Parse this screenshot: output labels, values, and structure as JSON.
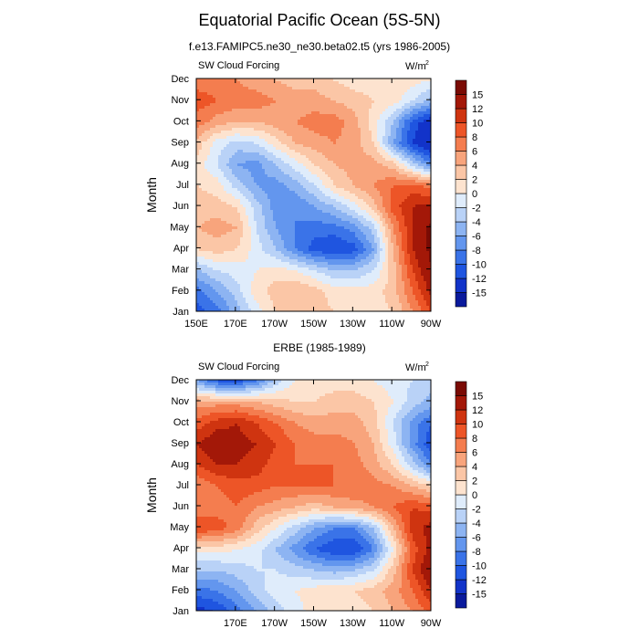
{
  "figure": {
    "title": "Equatorial Pacific Ocean (5S-5N)"
  },
  "chart_data": [
    {
      "type": "heatmap",
      "title": "f.e13.FAMIPC5.ne30_ne30.beta02.t5 (yrs 1986-2005)",
      "left_label": "SW Cloud Forcing",
      "units_label": "W/m",
      "units_sup": "2",
      "ylabel": "Month",
      "xlabel": "",
      "x_ticks": [
        "150E",
        "170E",
        "170W",
        "150W",
        "130W",
        "110W",
        "90W"
      ],
      "y_ticks": [
        "Jan",
        "Feb",
        "Mar",
        "Apr",
        "May",
        "Jun",
        "Jul",
        "Aug",
        "Sep",
        "Oct",
        "Nov",
        "Dec"
      ],
      "colorbar_levels": [
        "-15",
        "-12",
        "-10",
        "-8",
        "-6",
        "-4",
        "-2",
        "0",
        "2",
        "4",
        "6",
        "8",
        "10",
        "12",
        "15"
      ],
      "colorbar_colors": [
        "#0a1a9c",
        "#1233c9",
        "#1f55e0",
        "#3a73e8",
        "#6396ee",
        "#8db4f2",
        "#b9d2f7",
        "#dfecfb",
        "#fde3cf",
        "#fbc6a6",
        "#f8a47c",
        "#f47d4f",
        "#ed5527",
        "#cf3410",
        "#a31808",
        "#7a0b04"
      ],
      "grid": {
        "x_lons": [
          150,
          160,
          170,
          180,
          190,
          200,
          210,
          220,
          230,
          240,
          250,
          260,
          270
        ],
        "months": [
          "Jan",
          "Feb",
          "Mar",
          "Apr",
          "May",
          "Jun",
          "Jul",
          "Aug",
          "Sep",
          "Oct",
          "Nov",
          "Dec"
        ],
        "z": [
          [
            -11,
            -9,
            -5,
            -1,
            2,
            3,
            3,
            2,
            2,
            1,
            2,
            6,
            10
          ],
          [
            -9,
            -6,
            -3,
            1,
            3,
            4,
            3,
            1,
            1,
            1,
            3,
            8,
            13
          ],
          [
            -4,
            -2,
            -1,
            0,
            1,
            0,
            -2,
            -4,
            -4,
            -2,
            3,
            10,
            15
          ],
          [
            2,
            3,
            2,
            -1,
            -4,
            -8,
            -11,
            -12,
            -11,
            -6,
            4,
            12,
            16
          ],
          [
            4,
            5,
            4,
            -2,
            -6,
            -8,
            -9,
            -9,
            -7,
            -3,
            6,
            12,
            16
          ],
          [
            3,
            3,
            2,
            -3,
            -7,
            -8,
            -6,
            -4,
            -1,
            3,
            9,
            12,
            13
          ],
          [
            2,
            1,
            -3,
            -6,
            -7,
            -5,
            -2,
            2,
            4,
            6,
            8,
            9,
            7
          ],
          [
            1,
            -2,
            -6,
            -7,
            -4,
            -1,
            2,
            4,
            5,
            5,
            3,
            -3,
            -8
          ],
          [
            3,
            -1,
            -3,
            -2,
            1,
            4,
            5,
            6,
            5,
            2,
            -6,
            -12,
            -15
          ],
          [
            7,
            5,
            4,
            4,
            5,
            6,
            7,
            7,
            5,
            1,
            -4,
            -11,
            -14
          ],
          [
            9,
            8,
            7,
            7,
            6,
            5,
            5,
            4,
            3,
            2,
            1,
            -2,
            -5
          ],
          [
            7,
            7,
            6,
            5,
            4,
            3,
            3,
            2,
            1,
            1,
            2,
            1,
            0
          ]
        ]
      }
    },
    {
      "type": "heatmap",
      "title": "ERBE (1985-1989)",
      "left_label": "SW Cloud Forcing",
      "units_label": "W/m",
      "units_sup": "2",
      "ylabel": "Month",
      "xlabel": "",
      "x_ticks": [
        "170E",
        "170W",
        "150W",
        "130W",
        "110W",
        "90W"
      ],
      "y_ticks": [
        "Jan",
        "Feb",
        "Mar",
        "Apr",
        "May",
        "Jun",
        "Jul",
        "Aug",
        "Sep",
        "Oct",
        "Nov",
        "Dec"
      ],
      "colorbar_levels": [
        "-15",
        "-12",
        "-10",
        "-8",
        "-6",
        "-4",
        "-2",
        "0",
        "2",
        "4",
        "6",
        "8",
        "10",
        "12",
        "15"
      ],
      "colorbar_colors": [
        "#0a1a9c",
        "#1233c9",
        "#1f55e0",
        "#3a73e8",
        "#6396ee",
        "#8db4f2",
        "#b9d2f7",
        "#dfecfb",
        "#fde3cf",
        "#fbc6a6",
        "#f8a47c",
        "#f47d4f",
        "#ed5527",
        "#cf3410",
        "#a31808",
        "#7a0b04"
      ],
      "grid": {
        "x_lons": [
          150,
          160,
          170,
          180,
          190,
          200,
          210,
          220,
          230,
          240,
          250,
          260,
          270
        ],
        "months": [
          "Jan",
          "Feb",
          "Mar",
          "Apr",
          "May",
          "Jun",
          "Jul",
          "Aug",
          "Sep",
          "Oct",
          "Nov",
          "Dec"
        ],
        "z": [
          [
            -13,
            -12,
            -9,
            -6,
            -3,
            -1,
            1,
            2,
            1,
            2,
            4,
            6,
            9
          ],
          [
            -9,
            -8,
            -6,
            -3,
            -1,
            0,
            1,
            2,
            2,
            3,
            5,
            8,
            12
          ],
          [
            -4,
            -4,
            -3,
            -2,
            -2,
            -3,
            -4,
            -5,
            -4,
            -2,
            3,
            10,
            15
          ],
          [
            1,
            1,
            0,
            -1,
            -4,
            -7,
            -10,
            -12,
            -12,
            -8,
            0,
            9,
            13
          ],
          [
            10,
            9,
            7,
            3,
            0,
            -3,
            -6,
            -8,
            -8,
            -4,
            4,
            11,
            13
          ],
          [
            6,
            7,
            8,
            6,
            5,
            4,
            3,
            4,
            5,
            6,
            8,
            10,
            9
          ],
          [
            6,
            8,
            9,
            9,
            8,
            8,
            8,
            8,
            8,
            7,
            6,
            4,
            2
          ],
          [
            10,
            12,
            12,
            11,
            9,
            8,
            8,
            8,
            7,
            5,
            2,
            -3,
            -8
          ],
          [
            12,
            14,
            13,
            12,
            10,
            8,
            7,
            7,
            6,
            4,
            -1,
            -7,
            -12
          ],
          [
            9,
            11,
            12,
            10,
            8,
            6,
            5,
            5,
            5,
            3,
            -2,
            -7,
            -10
          ],
          [
            5,
            5,
            5,
            4,
            3,
            2,
            2,
            3,
            3,
            2,
            0,
            -3,
            -5
          ],
          [
            -6,
            -10,
            -11,
            -8,
            -3,
            0,
            1,
            1,
            1,
            0,
            -1,
            -2,
            -3
          ]
        ]
      }
    }
  ]
}
